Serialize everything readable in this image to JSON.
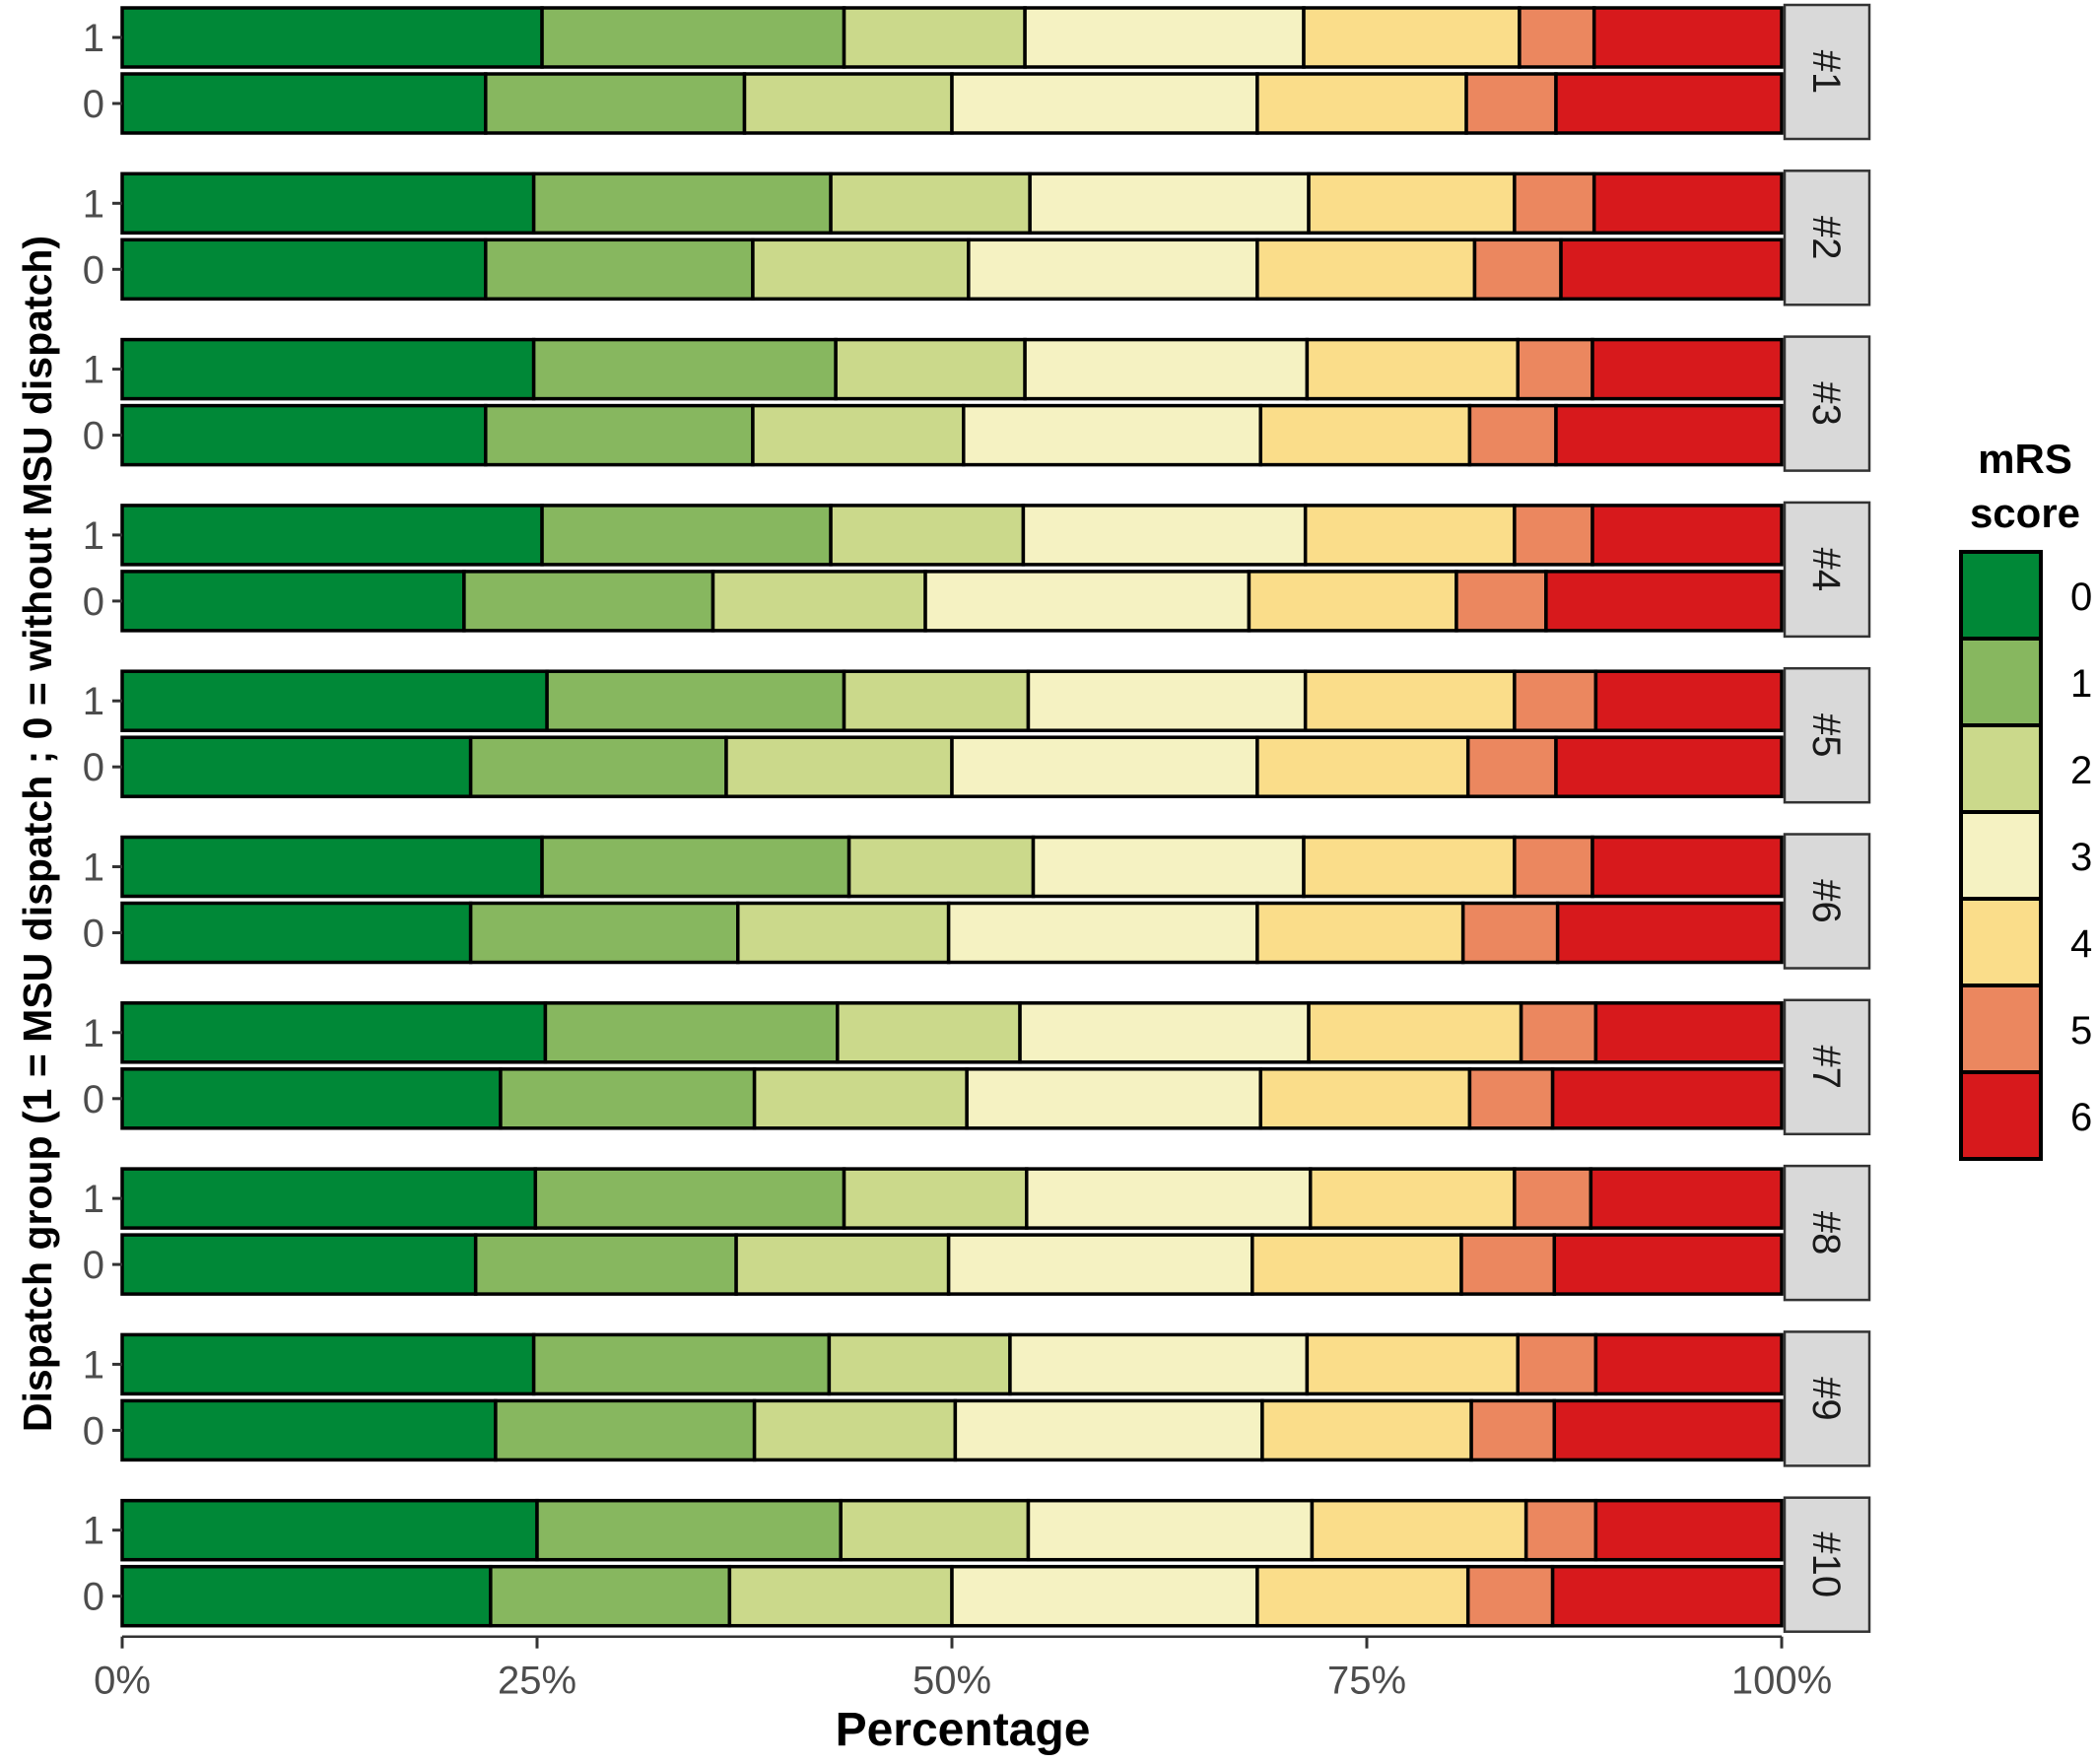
{
  "chart_data": {
    "type": "bar",
    "orientation": "horizontal",
    "stacked": "percent",
    "xlabel": "Percentage",
    "ylabel": "Dispatch group (1 = MSU dispatch ; 0 = without MSU dispatch)",
    "x_ticks": [
      "0%",
      "25%",
      "50%",
      "75%",
      "100%"
    ],
    "xlim": [
      0,
      100
    ],
    "legend": {
      "title": "mRS score",
      "position": "right",
      "entries": [
        "0",
        "1",
        "2",
        "3",
        "4",
        "5",
        "6"
      ]
    },
    "colors": [
      "#008837",
      "#87b75f",
      "#cbd98b",
      "#f5f2c2",
      "#fadd8a",
      "#eb875f",
      "#d7191c"
    ],
    "panels": [
      {
        "label": "#1",
        "rows": [
          {
            "group": "1",
            "values": [
              25.3,
              18.2,
              10.9,
              16.8,
              13.0,
              4.5,
              11.3
            ]
          },
          {
            "group": "0",
            "values": [
              21.9,
              15.6,
              12.5,
              18.4,
              12.6,
              5.4,
              13.6
            ]
          }
        ]
      },
      {
        "label": "#2",
        "rows": [
          {
            "group": "1",
            "values": [
              24.8,
              17.9,
              12.0,
              16.8,
              12.4,
              4.8,
              11.3
            ]
          },
          {
            "group": "0",
            "values": [
              21.9,
              16.1,
              13.0,
              17.4,
              13.1,
              5.2,
              13.3
            ]
          }
        ]
      },
      {
        "label": "#3",
        "rows": [
          {
            "group": "1",
            "values": [
              24.8,
              18.2,
              11.4,
              17.0,
              12.7,
              4.5,
              11.4
            ]
          },
          {
            "group": "0",
            "values": [
              21.9,
              16.1,
              12.7,
              17.9,
              12.6,
              5.2,
              13.6
            ]
          }
        ]
      },
      {
        "label": "#4",
        "rows": [
          {
            "group": "1",
            "values": [
              25.3,
              17.4,
              11.6,
              17.0,
              12.6,
              4.7,
              11.4
            ]
          },
          {
            "group": "0",
            "values": [
              20.6,
              15.0,
              12.8,
              19.5,
              12.5,
              5.4,
              14.2
            ]
          }
        ]
      },
      {
        "label": "#5",
        "rows": [
          {
            "group": "1",
            "values": [
              25.6,
              17.9,
              11.1,
              16.7,
              12.6,
              4.9,
              11.2
            ]
          },
          {
            "group": "0",
            "values": [
              21.0,
              15.4,
              13.6,
              18.4,
              12.7,
              5.3,
              13.6
            ]
          }
        ]
      },
      {
        "label": "#6",
        "rows": [
          {
            "group": "1",
            "values": [
              25.3,
              18.5,
              11.1,
              16.3,
              12.7,
              4.7,
              11.4
            ]
          },
          {
            "group": "0",
            "values": [
              21.0,
              16.1,
              12.7,
              18.6,
              12.4,
              5.7,
              13.5
            ]
          }
        ]
      },
      {
        "label": "#7",
        "rows": [
          {
            "group": "1",
            "values": [
              25.5,
              17.6,
              11.0,
              17.4,
              12.8,
              4.5,
              11.2
            ]
          },
          {
            "group": "0",
            "values": [
              22.8,
              15.3,
              12.8,
              17.7,
              12.6,
              5.0,
              13.8
            ]
          }
        ]
      },
      {
        "label": "#8",
        "rows": [
          {
            "group": "1",
            "values": [
              24.9,
              18.6,
              11.0,
              17.1,
              12.3,
              4.6,
              11.5
            ]
          },
          {
            "group": "0",
            "values": [
              21.3,
              15.7,
              12.8,
              18.3,
              12.6,
              5.6,
              13.7
            ]
          }
        ]
      },
      {
        "label": "#9",
        "rows": [
          {
            "group": "1",
            "values": [
              24.8,
              17.8,
              10.9,
              17.9,
              12.7,
              4.7,
              11.2
            ]
          },
          {
            "group": "0",
            "values": [
              22.5,
              15.6,
              12.1,
              18.5,
              12.6,
              5.0,
              13.7
            ]
          }
        ]
      },
      {
        "label": "#10",
        "rows": [
          {
            "group": "1",
            "values": [
              25.0,
              18.3,
              11.3,
              17.1,
              12.9,
              4.2,
              11.2
            ]
          },
          {
            "group": "0",
            "values": [
              22.2,
              14.4,
              13.4,
              18.4,
              12.7,
              5.1,
              13.8
            ]
          }
        ]
      }
    ]
  }
}
